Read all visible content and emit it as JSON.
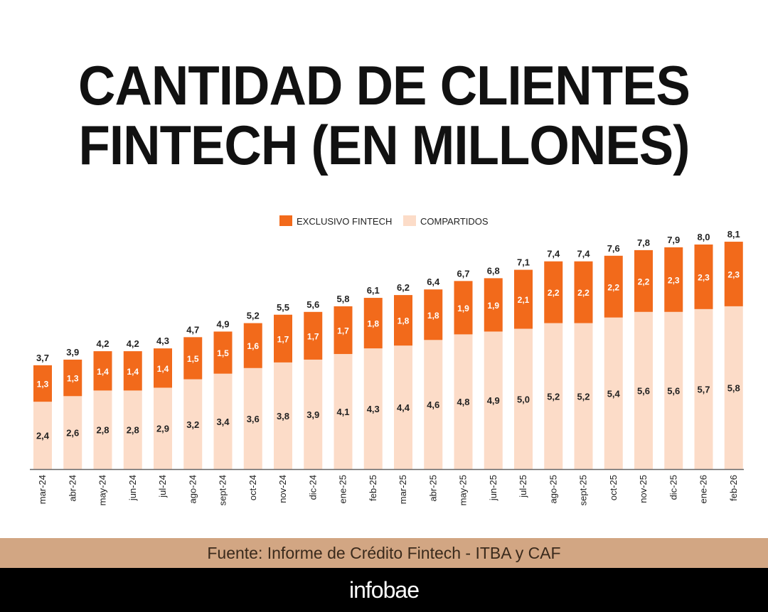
{
  "title": {
    "line1": "CANTIDAD DE CLIENTES",
    "line2": "FINTECH (EN MILLONES)"
  },
  "chart_data": {
    "type": "bar",
    "stacked": true,
    "title": "CANTIDAD DE CLIENTES FINTECH (EN MILLONES)",
    "categories": [
      "mar-24",
      "abr-24",
      "may-24",
      "jun-24",
      "jul-24",
      "ago-24",
      "sept-24",
      "oct-24",
      "nov-24",
      "dic-24",
      "ene-25",
      "feb-25",
      "mar-25",
      "abr-25",
      "may-25",
      "jun-25",
      "jul-25",
      "ago-25",
      "sept-25",
      "oct-25",
      "nov-25",
      "dic-25",
      "ene-26",
      "feb-26"
    ],
    "series": [
      {
        "name": "COMPARTIDOS",
        "color": "#fcdcc8",
        "values": [
          2.4,
          2.6,
          2.8,
          2.8,
          2.9,
          3.2,
          3.4,
          3.6,
          3.8,
          3.9,
          4.1,
          4.3,
          4.4,
          4.6,
          4.8,
          4.9,
          5.0,
          5.2,
          5.2,
          5.4,
          5.6,
          5.6,
          5.7,
          5.8
        ],
        "labels": [
          "2,4",
          "2,6",
          "2,8",
          "2,8",
          "2,9",
          "3,2",
          "3,4",
          "3,6",
          "3,8",
          "3,9",
          "4,1",
          "4,3",
          "4,4",
          "4,6",
          "4,8",
          "4,9",
          "5,0",
          "5,2",
          "5,2",
          "5,4",
          "5,6",
          "5,6",
          "5,7",
          "5,8"
        ]
      },
      {
        "name": "EXCLUSIVO FINTECH",
        "color": "#f26a1b",
        "values": [
          1.3,
          1.3,
          1.4,
          1.4,
          1.4,
          1.5,
          1.5,
          1.6,
          1.7,
          1.7,
          1.7,
          1.8,
          1.8,
          1.8,
          1.9,
          1.9,
          2.1,
          2.2,
          2.2,
          2.2,
          2.2,
          2.3,
          2.3,
          2.3
        ],
        "labels": [
          "1,3",
          "1,3",
          "1,4",
          "1,4",
          "1,4",
          "1,5",
          "1,5",
          "1,6",
          "1,7",
          "1,7",
          "1,7",
          "1,8",
          "1,8",
          "1,8",
          "1,9",
          "1,9",
          "2,1",
          "2,2",
          "2,2",
          "2,2",
          "2,2",
          "2,3",
          "2,3",
          "2,3"
        ]
      }
    ],
    "totals": [
      3.7,
      3.9,
      4.2,
      4.2,
      4.3,
      4.7,
      4.9,
      5.2,
      5.5,
      5.6,
      5.8,
      6.1,
      6.2,
      6.4,
      6.7,
      6.8,
      7.1,
      7.4,
      7.4,
      7.6,
      7.8,
      7.9,
      8.0,
      8.1
    ],
    "total_labels": [
      "3,7",
      "3,9",
      "4,2",
      "4,2",
      "4,3",
      "4,7",
      "4,9",
      "5,2",
      "5,5",
      "5,6",
      "5,8",
      "6,1",
      "6,2",
      "6,4",
      "6,7",
      "6,8",
      "7,1",
      "7,4",
      "7,4",
      "7,6",
      "7,8",
      "7,9",
      "8,0",
      "8,1"
    ],
    "legend": {
      "position": "top-center",
      "items": [
        {
          "name": "EXCLUSIVO FINTECH",
          "color": "#f26a1b"
        },
        {
          "name": "COMPARTIDOS",
          "color": "#fcdcc8"
        }
      ]
    },
    "ylim": [
      0,
      8.1
    ],
    "grid": false
  },
  "source": "Fuente: Informe de Crédito Fintech - ITBA y CAF",
  "brand": "infobae"
}
